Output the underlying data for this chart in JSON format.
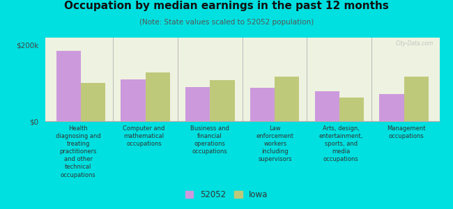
{
  "title": "Occupation by median earnings in the past 12 months",
  "subtitle": "(Note: State values scaled to 52052 population)",
  "background_color": "#00e0e0",
  "plot_bg_color": "#eef2e0",
  "categories": [
    "Health\ndiagnosing and\ntreating\npractitioners\nand other\ntechnical\noccupations",
    "Computer and\nmathematical\noccupations",
    "Business and\nfinancial\noperations\noccupations",
    "Law\nenforcement\nworkers\nincluding\nsupervisors",
    "Arts, design,\nentertainment,\nsports, and\nmedia\noccupations",
    "Management\noccupations"
  ],
  "values_52052": [
    185000,
    110000,
    90000,
    88000,
    78000,
    72000
  ],
  "values_iowa": [
    100000,
    128000,
    108000,
    118000,
    62000,
    118000
  ],
  "color_52052": "#cc99dd",
  "color_iowa": "#bfc97a",
  "ylim": [
    0,
    220000
  ],
  "yticks": [
    0,
    200000
  ],
  "ytick_labels": [
    "$0",
    "$200k"
  ],
  "legend_label_52052": "52052",
  "legend_label_iowa": "Iowa",
  "bar_width": 0.38
}
